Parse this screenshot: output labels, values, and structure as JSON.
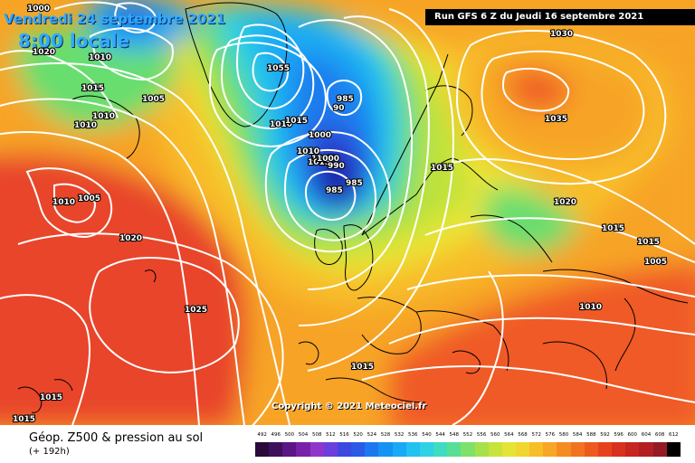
{
  "header": {
    "valid_date": "Vendredi 24 septembre 2021",
    "local_time": "8:00 locale",
    "run_info": "Run GFS 6 Z du Jeudi 16 septembre 2021"
  },
  "copyright": "Copyright © 2021 Meteociel.fr",
  "legend": {
    "title": "Géop. Z500 & pression au sol",
    "lead": "(+ 192h)",
    "scale_values": [
      "492",
      "496",
      "500",
      "504",
      "508",
      "512",
      "516",
      "520",
      "524",
      "528",
      "532",
      "536",
      "540",
      "544",
      "548",
      "552",
      "556",
      "560",
      "564",
      "568",
      "572",
      "576",
      "580",
      "584",
      "588",
      "592",
      "596",
      "600",
      "604",
      "608",
      "612"
    ],
    "scale_colors": [
      "#2a0a3a",
      "#3e0f5a",
      "#5a1683",
      "#7a20a8",
      "#8f35c9",
      "#6a3fdc",
      "#3d48e0",
      "#2a5ae6",
      "#1c78ee",
      "#1592f2",
      "#19aaf5",
      "#22c1f2",
      "#2fd2e4",
      "#3fdcc2",
      "#58df96",
      "#7fe06a",
      "#a6e04a",
      "#c8e33c",
      "#e3e436",
      "#f0d630",
      "#f6bf2a",
      "#f8a626",
      "#f58c22",
      "#f2731f",
      "#ee5a1e",
      "#e5421e",
      "#d8321f",
      "#c62620",
      "#b21e22",
      "#941a24",
      "#000000"
    ]
  },
  "map": {
    "colors": {
      "deep_red": "#e8442a",
      "red": "#f05a26",
      "orange": "#f7a426",
      "light_orange": "#f8bd2c",
      "yellow": "#ece536",
      "yellow_green": "#bfe23a",
      "green": "#68de6e",
      "cyan": "#28cfe6",
      "light_blue": "#1aa9f4",
      "blue": "#1f7cee",
      "dark_blue": "#2a45d6",
      "deep_blue": "#1f22a8",
      "navy": "#1a1470",
      "isobar": "#ffffff",
      "coastline": "#000000"
    },
    "isobar_labels": [
      "1000",
      "1010",
      "1020",
      "1005",
      "1015",
      "1010",
      "1010",
      "1005",
      "1010",
      "1020",
      "1025",
      "1055",
      "1010",
      "1015",
      "1000",
      "1005",
      "1010",
      "1015",
      "990",
      "985",
      "985",
      "90",
      "985",
      "1000",
      "1030",
      "1035",
      "1015",
      "1020",
      "1015",
      "1015",
      "1005",
      "1010",
      "1015",
      "1015",
      "1015"
    ]
  }
}
